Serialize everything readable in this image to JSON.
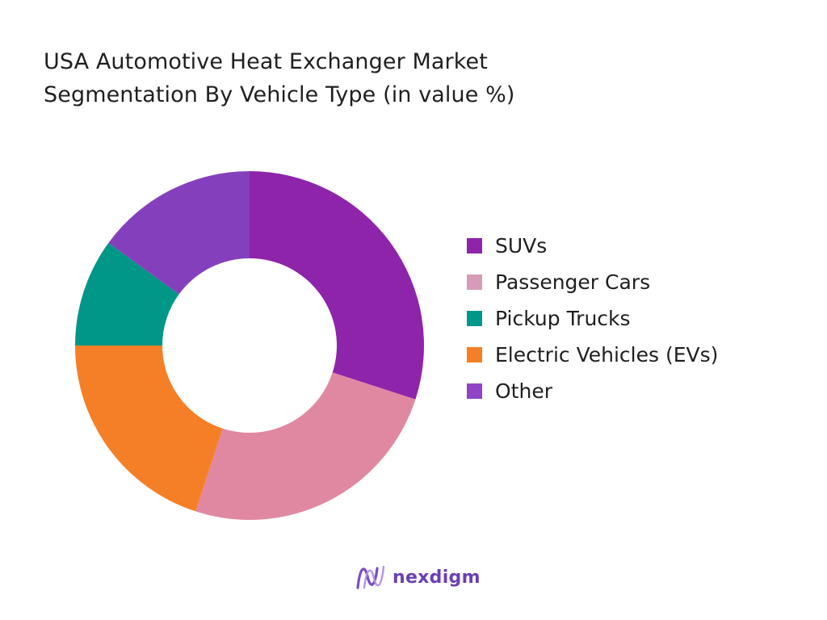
{
  "chart_data": {
    "type": "pie",
    "title_lines": [
      "USA Automotive Heat Exchanger Market",
      "Segmentation By Vehicle Type (in value %)"
    ],
    "donut": true,
    "legend_position": "right",
    "categories": [
      "SUVs",
      "Passenger Cars",
      "Pickup Trucks",
      "Electric Vehicles (EVs)",
      "Other"
    ],
    "values": [
      30,
      25,
      10,
      20,
      15
    ],
    "slice_order": [
      "SUVs",
      "Passenger Cars",
      "Electric Vehicles (EVs)",
      "Pickup Trucks",
      "Other"
    ],
    "slice_colors": {
      "SUVs": "#8e24aa",
      "Passenger Cars": "#e088a1",
      "Pickup Trucks": "#009688",
      "Electric Vehicles (EVs)": "#f57f27",
      "Other": "#8440bc"
    },
    "legend_colors": [
      "#8e24aa",
      "#d79bb8",
      "#009688",
      "#f57f27",
      "#8e44c4"
    ]
  },
  "brand": {
    "logo_text": "nexdigm",
    "logo_icon": "nexdigm-wave-icon",
    "colors": {
      "icon": "#7a4cc4",
      "text": "#6a3fb5"
    }
  }
}
